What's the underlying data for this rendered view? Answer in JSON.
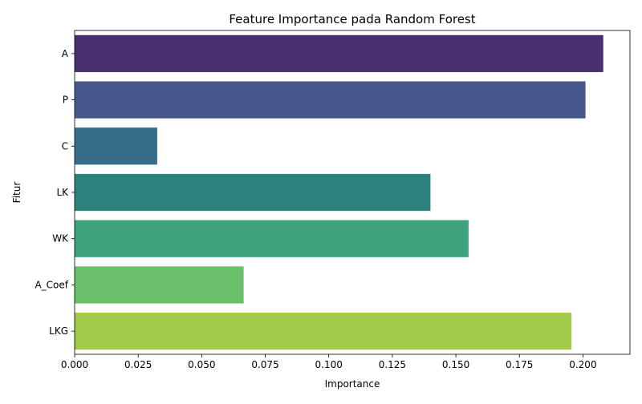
{
  "chart_data": {
    "type": "bar",
    "orientation": "horizontal",
    "title": "Feature Importance pada Random Forest",
    "xlabel": "Importance",
    "ylabel": "Fitur",
    "categories": [
      "A",
      "P",
      "C",
      "LK",
      "WK",
      "A_Coef",
      "LKG"
    ],
    "values": [
      0.208,
      0.201,
      0.0325,
      0.14,
      0.155,
      0.0665,
      0.1955
    ],
    "colors": [
      "#482f70",
      "#45578b",
      "#366e8a",
      "#2e827e",
      "#3ea37b",
      "#6cbf6a",
      "#a2c94a"
    ],
    "xlim": [
      0,
      0.2185
    ],
    "xticks": [
      "0.000",
      "0.025",
      "0.050",
      "0.075",
      "0.100",
      "0.125",
      "0.150",
      "0.175",
      "0.200"
    ],
    "grid": false,
    "legend": "none"
  }
}
